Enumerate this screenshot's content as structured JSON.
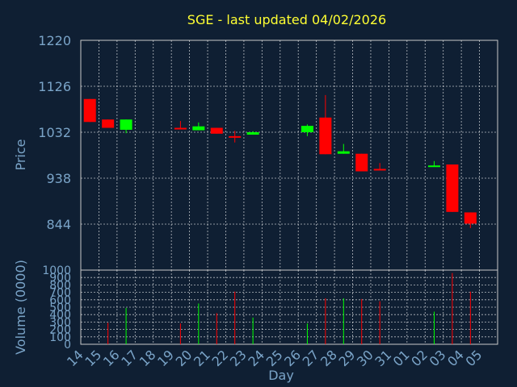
{
  "chart_data": [
    {
      "type": "candlestick",
      "title": "SGE - last updated 04/02/2026",
      "ylabel": "Price",
      "ylim": [
        750,
        1220
      ],
      "y_ticks": [
        "1220",
        "1126",
        "1032",
        "938",
        "844"
      ],
      "y_tick_values": [
        1220,
        1126,
        1032,
        938,
        844
      ],
      "grid": true,
      "colors": {
        "up": "#00ff00",
        "down": "#ff0000",
        "title": "#ffff33",
        "axis": "#7aa4c8",
        "background": "#0f1f33",
        "plot_bg": "#0f1f33"
      },
      "categories": [
        "14",
        "15",
        "16",
        "17",
        "18",
        "19",
        "20",
        "21",
        "22",
        "23",
        "24",
        "25",
        "26",
        "27",
        "28",
        "29",
        "30",
        "31",
        "01",
        "02",
        "03",
        "04",
        "05"
      ],
      "candles": [
        {
          "day": "14",
          "open": 1100,
          "close": 1053,
          "high": 1100,
          "low": 1053
        },
        {
          "day": "15",
          "open": 1058,
          "close": 1041,
          "high": 1058,
          "low": 1041
        },
        {
          "day": "16",
          "open": 1037,
          "close": 1058,
          "high": 1058,
          "low": 1030
        },
        {
          "day": "19",
          "open": 1041,
          "close": 1038,
          "high": 1055,
          "low": 1038
        },
        {
          "day": "20",
          "open": 1036,
          "close": 1044,
          "high": 1052,
          "low": 1036
        },
        {
          "day": "21",
          "open": 1041,
          "close": 1029,
          "high": 1041,
          "low": 1029
        },
        {
          "day": "22",
          "open": 1024,
          "close": 1022,
          "high": 1035,
          "low": 1011
        },
        {
          "day": "23",
          "open": 1027,
          "close": 1032,
          "high": 1034,
          "low": 1027
        },
        {
          "day": "26",
          "open": 1032,
          "close": 1045,
          "high": 1048,
          "low": 1024
        },
        {
          "day": "27",
          "open": 1062,
          "close": 987,
          "high": 1108,
          "low": 987
        },
        {
          "day": "28",
          "open": 988,
          "close": 993,
          "high": 1008,
          "low": 988
        },
        {
          "day": "29",
          "open": 988,
          "close": 952,
          "high": 988,
          "low": 952
        },
        {
          "day": "30",
          "open": 957,
          "close": 954,
          "high": 969,
          "low": 954
        },
        {
          "day": "02",
          "open": 963,
          "close": 964,
          "high": 973,
          "low": 963
        },
        {
          "day": "03",
          "open": 966,
          "close": 869,
          "high": 966,
          "low": 869
        },
        {
          "day": "04",
          "open": 868,
          "close": 845,
          "high": 868,
          "low": 836
        }
      ]
    },
    {
      "type": "bar",
      "xlabel": "Day",
      "ylabel": "Volume (0000)",
      "ylim": [
        0,
        1000
      ],
      "y_ticks": [
        "1000",
        "900",
        "800",
        "700",
        "600",
        "500",
        "400",
        "300",
        "200",
        "100",
        "0"
      ],
      "y_tick_values": [
        1000,
        900,
        800,
        700,
        600,
        500,
        400,
        300,
        200,
        100,
        0
      ],
      "categories": [
        "14",
        "15",
        "16",
        "17",
        "18",
        "19",
        "20",
        "21",
        "22",
        "23",
        "24",
        "25",
        "26",
        "27",
        "28",
        "29",
        "30",
        "31",
        "01",
        "02",
        "03",
        "04",
        "05"
      ],
      "bars": [
        {
          "day": "15",
          "value": 290,
          "direction": "down"
        },
        {
          "day": "16",
          "value": 490,
          "direction": "up"
        },
        {
          "day": "19",
          "value": 280,
          "direction": "down"
        },
        {
          "day": "20",
          "value": 550,
          "direction": "up"
        },
        {
          "day": "21",
          "value": 420,
          "direction": "down"
        },
        {
          "day": "22",
          "value": 710,
          "direction": "down"
        },
        {
          "day": "23",
          "value": 360,
          "direction": "up"
        },
        {
          "day": "26",
          "value": 280,
          "direction": "up"
        },
        {
          "day": "27",
          "value": 620,
          "direction": "down"
        },
        {
          "day": "28",
          "value": 620,
          "direction": "up"
        },
        {
          "day": "29",
          "value": 610,
          "direction": "down"
        },
        {
          "day": "30",
          "value": 580,
          "direction": "down"
        },
        {
          "day": "02",
          "value": 440,
          "direction": "up"
        },
        {
          "day": "03",
          "value": 960,
          "direction": "down"
        },
        {
          "day": "04",
          "value": 710,
          "direction": "down"
        }
      ]
    }
  ]
}
